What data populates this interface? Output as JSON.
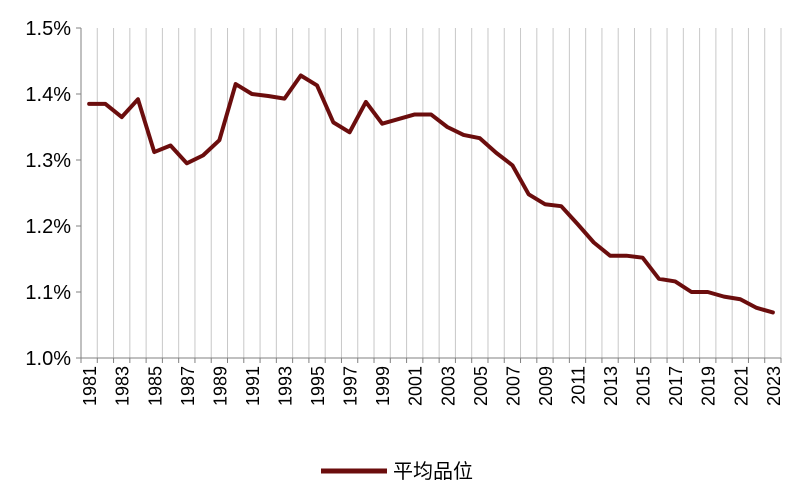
{
  "chart_data": {
    "type": "line",
    "title": "",
    "xlabel": "",
    "ylabel": "",
    "x": [
      1981,
      1982,
      1983,
      1984,
      1985,
      1986,
      1987,
      1988,
      1989,
      1990,
      1991,
      1992,
      1993,
      1994,
      1995,
      1996,
      1997,
      1998,
      1999,
      2000,
      2001,
      2002,
      2003,
      2004,
      2005,
      2006,
      2007,
      2008,
      2009,
      2010,
      2011,
      2012,
      2013,
      2014,
      2015,
      2016,
      2017,
      2018,
      2019,
      2020,
      2021,
      2022,
      2023
    ],
    "x_tick_labels": [
      "1981",
      "1983",
      "1985",
      "1987",
      "1989",
      "1991",
      "1993",
      "1995",
      "1997",
      "1999",
      "2001",
      "2003",
      "2005",
      "2007",
      "2009",
      "2011",
      "2013",
      "2015",
      "2017",
      "2019",
      "2021",
      "2023"
    ],
    "ylim": [
      1.0,
      1.5
    ],
    "y_ticks": [
      1.0,
      1.1,
      1.2,
      1.3,
      1.4,
      1.5
    ],
    "y_tick_labels": [
      "1.0%",
      "1.1%",
      "1.2%",
      "1.3%",
      "1.4%",
      "1.5%"
    ],
    "grid": "vertical",
    "legend_position": "bottom-center",
    "series": [
      {
        "name": "平均品位",
        "color": "#6b0d0d",
        "values": [
          1.385,
          1.385,
          1.365,
          1.392,
          1.312,
          1.322,
          1.295,
          1.307,
          1.33,
          1.415,
          1.4,
          1.397,
          1.393,
          1.428,
          1.413,
          1.357,
          1.342,
          1.388,
          1.355,
          1.362,
          1.369,
          1.369,
          1.35,
          1.338,
          1.333,
          1.311,
          1.292,
          1.248,
          1.233,
          1.23,
          1.203,
          1.175,
          1.155,
          1.155,
          1.152,
          1.12,
          1.116,
          1.1,
          1.1,
          1.093,
          1.089,
          1.076,
          1.069
        ]
      }
    ]
  }
}
